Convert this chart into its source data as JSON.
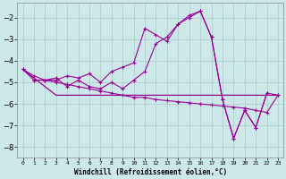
{
  "color": "#990099",
  "bg_color": "#cce8e8",
  "grid_color": "#aacccc",
  "xlabel": "Windchill (Refroidissement éolien,°C)",
  "ylim": [
    -8.5,
    -1.3
  ],
  "xlim": [
    -0.5,
    23.5
  ],
  "yticks": [
    -8,
    -7,
    -6,
    -5,
    -4,
    -3,
    -2
  ],
  "xtick_labels": [
    "0",
    "1",
    "2",
    "3",
    "4",
    "5",
    "6",
    "7",
    "8",
    "9",
    "10",
    "11",
    "12",
    "13",
    "14",
    "15",
    "16",
    "17",
    "18",
    "19",
    "20",
    "21",
    "22",
    "23"
  ],
  "line_up_x": [
    0,
    1,
    2,
    3,
    4,
    5,
    6,
    7,
    8,
    9,
    10,
    11,
    12,
    13,
    14,
    15,
    16,
    17,
    18,
    19,
    20,
    21,
    22
  ],
  "line_up_y": [
    -4.4,
    -4.9,
    -4.9,
    -4.9,
    -4.7,
    -4.8,
    -4.6,
    -5.0,
    -4.5,
    -4.3,
    -4.1,
    -2.5,
    -2.8,
    -3.1,
    -2.3,
    -1.9,
    -1.7,
    -2.9,
    -5.8,
    -7.6,
    -6.3,
    -7.1,
    -5.5
  ],
  "line_flat_x": [
    0,
    3,
    4,
    5,
    6,
    7,
    8,
    9,
    10,
    11,
    12,
    13,
    14,
    15,
    16,
    17,
    18,
    19,
    20,
    21,
    22,
    23
  ],
  "line_flat_y": [
    -4.4,
    -5.6,
    -5.6,
    -5.6,
    -5.6,
    -5.6,
    -5.6,
    -5.6,
    -5.6,
    -5.6,
    -5.6,
    -5.6,
    -5.6,
    -5.6,
    -5.6,
    -5.6,
    -5.6,
    -5.6,
    -5.6,
    -5.6,
    -5.6,
    -5.6
  ],
  "line_diag_x": [
    0,
    1,
    2,
    3,
    4,
    5,
    6,
    7,
    8,
    9,
    10,
    11,
    12,
    13,
    14,
    15,
    16,
    17,
    18,
    19,
    20,
    21,
    22,
    23
  ],
  "line_diag_y": [
    -4.4,
    -4.7,
    -4.9,
    -5.0,
    -5.1,
    -5.2,
    -5.3,
    -5.4,
    -5.5,
    -5.6,
    -5.7,
    -5.7,
    -5.8,
    -5.85,
    -5.9,
    -5.95,
    -6.0,
    -6.05,
    -6.1,
    -6.15,
    -6.2,
    -6.3,
    -6.4,
    -5.6
  ],
  "line_mid_x": [
    1,
    2,
    3,
    4,
    5,
    6,
    7,
    8,
    9,
    10,
    11,
    12,
    13,
    14,
    15,
    16,
    17,
    18,
    19,
    20,
    21,
    22,
    23
  ],
  "line_mid_y": [
    -4.9,
    -4.9,
    -4.8,
    -5.2,
    -4.9,
    -5.2,
    -5.3,
    -5.0,
    -5.3,
    -4.9,
    -4.5,
    -3.2,
    -2.9,
    -2.3,
    -2.0,
    -1.7,
    -2.9,
    -5.8,
    -7.6,
    -6.3,
    -7.1,
    -5.5,
    -5.6
  ]
}
